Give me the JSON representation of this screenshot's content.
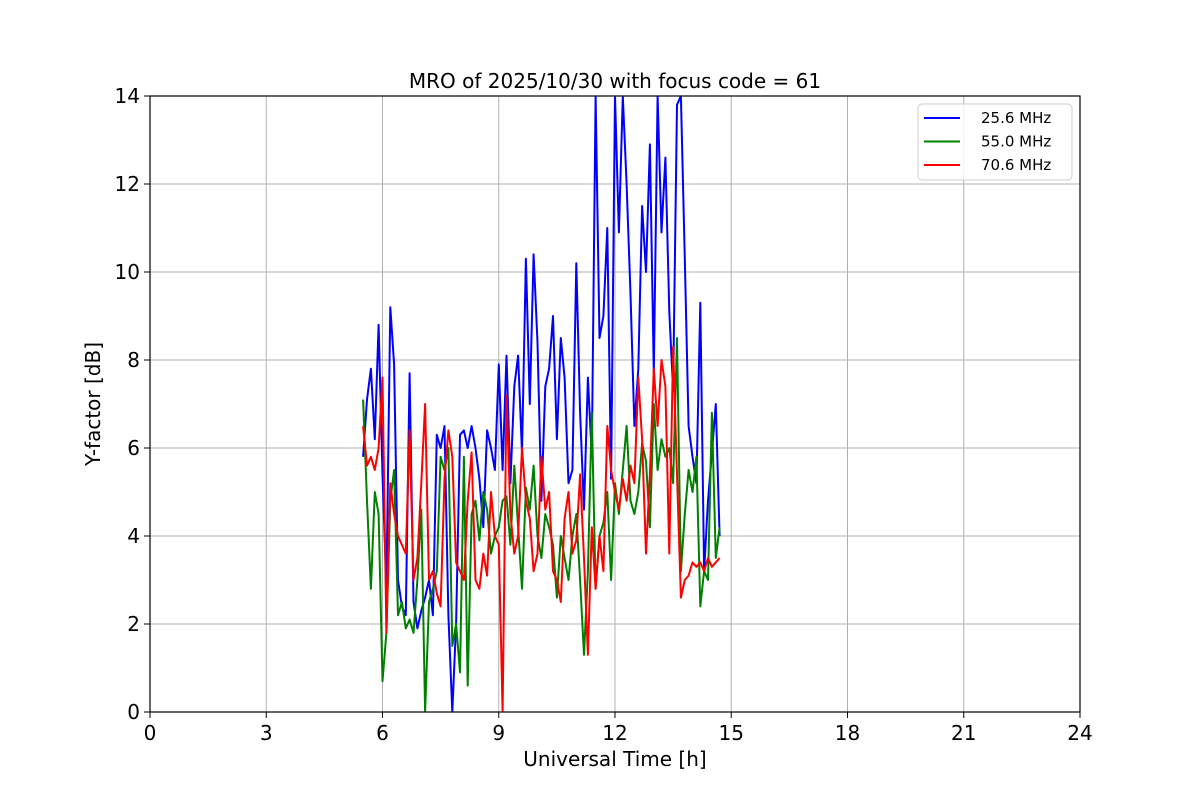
{
  "chart_data": {
    "type": "line",
    "title": "MRO of 2025/10/30 with focus code = 61",
    "xlabel": "Universal Time [h]",
    "ylabel": "Y-factor [dB]",
    "xlim": [
      0,
      24
    ],
    "ylim": [
      0,
      14
    ],
    "x_ticks": [
      "0",
      "3",
      "6",
      "9",
      "12",
      "15",
      "18",
      "21",
      "24"
    ],
    "y_ticks": [
      "0",
      "2",
      "4",
      "6",
      "8",
      "10",
      "12",
      "14"
    ],
    "grid": true,
    "legend_position": "top-right",
    "series": [
      {
        "name": "25.6 MHz",
        "color": "#0000ff",
        "x": [
          5.5,
          5.6,
          5.7,
          5.8,
          5.9,
          6.0,
          6.1,
          6.2,
          6.3,
          6.4,
          6.5,
          6.6,
          6.7,
          6.8,
          6.9,
          7.0,
          7.1,
          7.2,
          7.3,
          7.4,
          7.5,
          7.6,
          7.7,
          7.8,
          7.9,
          8.0,
          8.1,
          8.2,
          8.3,
          8.4,
          8.5,
          8.6,
          8.7,
          8.8,
          8.9,
          9.0,
          9.1,
          9.2,
          9.3,
          9.4,
          9.5,
          9.6,
          9.7,
          9.8,
          9.9,
          10.0,
          10.1,
          10.2,
          10.3,
          10.4,
          10.5,
          10.6,
          10.7,
          10.8,
          10.9,
          11.0,
          11.1,
          11.2,
          11.3,
          11.4,
          11.5,
          11.6,
          11.7,
          11.8,
          11.9,
          12.0,
          12.1,
          12.2,
          12.3,
          12.4,
          12.5,
          12.6,
          12.7,
          12.8,
          12.9,
          13.0,
          13.1,
          13.2,
          13.3,
          13.4,
          13.5,
          13.6,
          13.7,
          13.8,
          13.9,
          14.0,
          14.1,
          14.2,
          14.3,
          14.4,
          14.5,
          14.6,
          14.7
        ],
        "y": [
          5.8,
          7.1,
          7.8,
          6.2,
          8.8,
          5.4,
          2.8,
          9.2,
          7.9,
          3.0,
          2.4,
          2.2,
          7.7,
          2.5,
          1.9,
          2.3,
          2.6,
          3.0,
          2.2,
          6.3,
          6.0,
          6.5,
          2.2,
          0.0,
          2.0,
          6.3,
          6.4,
          6.0,
          6.5,
          6.0,
          5.3,
          4.2,
          6.4,
          6.0,
          5.5,
          7.9,
          5.5,
          8.1,
          5.2,
          7.4,
          8.1,
          5.9,
          10.3,
          7.0,
          10.4,
          8.4,
          4.8,
          7.4,
          7.8,
          9.0,
          6.2,
          8.5,
          7.6,
          5.2,
          5.5,
          10.2,
          6.8,
          4.6,
          7.6,
          5.8,
          14.0,
          8.5,
          9.0,
          11.0,
          5.3,
          14.0,
          10.9,
          14.0,
          12.0,
          9.5,
          6.5,
          7.8,
          11.5,
          10.0,
          12.9,
          7.7,
          14.0,
          10.9,
          12.6,
          9.1,
          7.3,
          13.8,
          14.0,
          10.3,
          6.5,
          5.8,
          5.2,
          9.3,
          3.2,
          4.8,
          5.9,
          7.0,
          4.0
        ]
      },
      {
        "name": "55.0 MHz",
        "color": "#008000",
        "x": [
          5.5,
          5.6,
          5.7,
          5.8,
          5.9,
          6.0,
          6.1,
          6.2,
          6.3,
          6.4,
          6.5,
          6.6,
          6.7,
          6.8,
          6.9,
          7.0,
          7.1,
          7.2,
          7.3,
          7.4,
          7.5,
          7.6,
          7.7,
          7.8,
          7.9,
          8.0,
          8.1,
          8.2,
          8.3,
          8.4,
          8.5,
          8.6,
          8.7,
          8.8,
          8.9,
          9.0,
          9.1,
          9.2,
          9.3,
          9.4,
          9.5,
          9.6,
          9.7,
          9.8,
          9.9,
          10.0,
          10.1,
          10.2,
          10.3,
          10.4,
          10.5,
          10.6,
          10.7,
          10.8,
          10.9,
          11.0,
          11.1,
          11.2,
          11.3,
          11.4,
          11.5,
          11.6,
          11.7,
          11.8,
          11.9,
          12.0,
          12.1,
          12.2,
          12.3,
          12.4,
          12.5,
          12.6,
          12.7,
          12.8,
          12.9,
          13.0,
          13.1,
          13.2,
          13.3,
          13.4,
          13.5,
          13.6,
          13.7,
          13.8,
          13.9,
          14.0,
          14.1,
          14.2,
          14.3,
          14.4,
          14.5,
          14.6,
          14.7
        ],
        "y": [
          7.1,
          4.8,
          2.8,
          5.0,
          4.5,
          0.7,
          1.8,
          4.8,
          5.5,
          2.2,
          2.5,
          1.9,
          2.1,
          1.8,
          3.0,
          4.6,
          0.0,
          2.5,
          2.8,
          3.2,
          5.8,
          5.5,
          6.0,
          1.5,
          2.0,
          0.9,
          5.8,
          0.6,
          4.5,
          4.8,
          3.9,
          5.0,
          4.6,
          3.6,
          4.0,
          4.2,
          4.8,
          4.9,
          3.8,
          5.6,
          4.2,
          2.8,
          5.1,
          4.6,
          5.6,
          4.0,
          3.5,
          4.5,
          4.2,
          3.8,
          2.6,
          4.0,
          3.5,
          3.0,
          4.0,
          4.5,
          3.0,
          1.3,
          3.2,
          6.8,
          2.8,
          4.0,
          4.3,
          5.0,
          3.0,
          5.2,
          4.5,
          5.5,
          6.5,
          4.8,
          4.5,
          5.0,
          6.1,
          5.7,
          4.2,
          7.0,
          5.5,
          6.2,
          5.8,
          6.0,
          5.2,
          8.5,
          3.2,
          4.5,
          5.5,
          5.0,
          5.8,
          2.4,
          3.2,
          3.0,
          6.8,
          3.5,
          4.2
        ]
      },
      {
        "name": "70.6 MHz",
        "color": "#ff0000",
        "x": [
          5.5,
          5.6,
          5.7,
          5.8,
          5.9,
          6.0,
          6.1,
          6.2,
          6.3,
          6.4,
          6.5,
          6.6,
          6.7,
          6.8,
          6.9,
          7.0,
          7.1,
          7.2,
          7.3,
          7.4,
          7.5,
          7.6,
          7.7,
          7.8,
          7.9,
          8.0,
          8.1,
          8.2,
          8.3,
          8.4,
          8.5,
          8.6,
          8.7,
          8.8,
          8.9,
          9.0,
          9.1,
          9.2,
          9.3,
          9.4,
          9.5,
          9.6,
          9.7,
          9.8,
          9.9,
          10.0,
          10.1,
          10.2,
          10.3,
          10.4,
          10.5,
          10.6,
          10.7,
          10.8,
          10.9,
          11.0,
          11.1,
          11.2,
          11.3,
          11.4,
          11.5,
          11.6,
          11.7,
          11.8,
          11.9,
          12.0,
          12.1,
          12.2,
          12.3,
          12.4,
          12.5,
          12.6,
          12.7,
          12.8,
          12.9,
          13.0,
          13.1,
          13.2,
          13.3,
          13.4,
          13.5,
          13.6,
          13.7,
          13.8,
          13.9,
          14.0,
          14.1,
          14.2,
          14.3,
          14.4,
          14.5,
          14.6,
          14.7
        ],
        "y": [
          6.5,
          5.6,
          5.8,
          5.5,
          6.0,
          7.6,
          1.8,
          5.2,
          4.5,
          4.0,
          3.8,
          3.6,
          6.4,
          3.0,
          3.5,
          5.2,
          7.0,
          3.0,
          3.2,
          2.7,
          2.4,
          5.3,
          6.4,
          5.8,
          3.4,
          3.2,
          3.0,
          4.8,
          5.9,
          3.0,
          2.8,
          3.6,
          3.1,
          5.0,
          4.0,
          3.8,
          0.0,
          7.2,
          4.5,
          3.6,
          4.0,
          6.0,
          4.8,
          4.4,
          3.2,
          3.6,
          5.8,
          4.6,
          5.0,
          3.2,
          3.0,
          2.5,
          4.4,
          5.0,
          3.6,
          3.9,
          5.4,
          3.5,
          1.3,
          4.2,
          2.8,
          4.0,
          3.2,
          6.5,
          5.5,
          5.0,
          4.6,
          5.3,
          4.8,
          5.6,
          5.2,
          7.6,
          6.2,
          3.6,
          5.4,
          7.8,
          6.5,
          8.0,
          7.4,
          3.6,
          8.3,
          5.4,
          2.6,
          3.0,
          3.1,
          3.4,
          3.3,
          3.4,
          3.2,
          3.5,
          3.3,
          3.4,
          3.5
        ]
      }
    ]
  }
}
